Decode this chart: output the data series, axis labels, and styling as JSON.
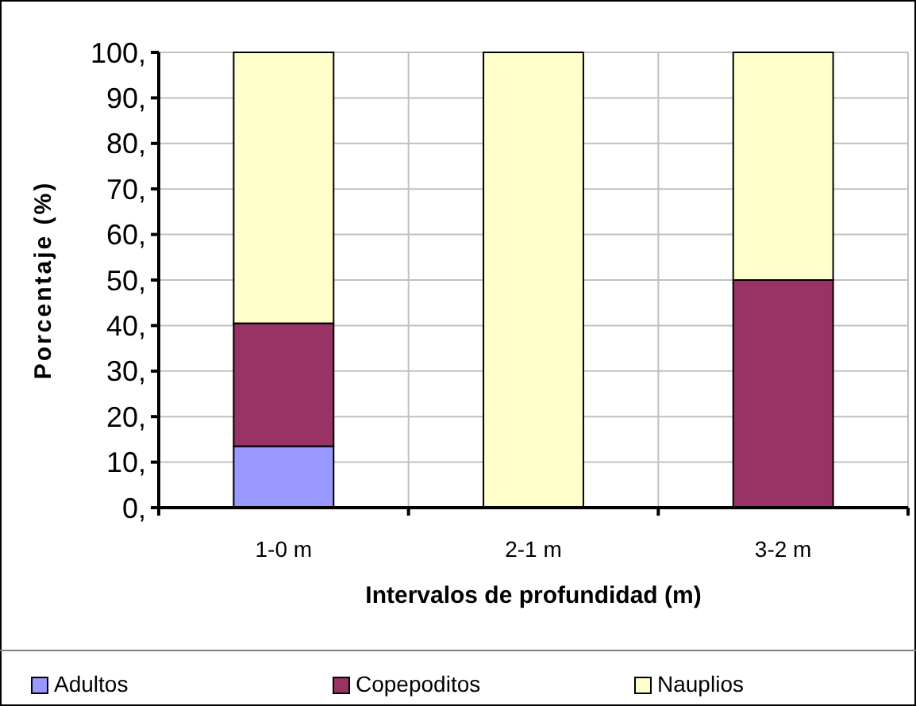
{
  "chart_data": {
    "type": "bar",
    "stacked": true,
    "xlabel": "Intervalos de profundidad (m)",
    "ylabel": "Porcentaje (%)",
    "categories": [
      "1-0 m",
      "2-1 m",
      "3-2 m"
    ],
    "series": [
      {
        "name": "Adultos",
        "color": "#9999ff",
        "values": [
          13.5,
          0,
          0
        ]
      },
      {
        "name": "Copepoditos",
        "color": "#993366",
        "values": [
          27,
          0,
          50
        ]
      },
      {
        "name": "Nauplios",
        "color": "#ffffcc",
        "values": [
          59.5,
          100,
          50
        ]
      }
    ],
    "ylim": [
      0,
      100
    ],
    "yticks": [
      {
        "value": 0,
        "label": "0,"
      },
      {
        "value": 10,
        "label": "10,"
      },
      {
        "value": 20,
        "label": "20,"
      },
      {
        "value": 30,
        "label": "30,"
      },
      {
        "value": 40,
        "label": "40,"
      },
      {
        "value": 50,
        "label": "50,"
      },
      {
        "value": 60,
        "label": "60,"
      },
      {
        "value": 70,
        "label": "70,"
      },
      {
        "value": 80,
        "label": "80,"
      },
      {
        "value": 90,
        "label": "90,"
      },
      {
        "value": 100,
        "label": "100,"
      }
    ],
    "grid": true,
    "legend": "bottom"
  }
}
